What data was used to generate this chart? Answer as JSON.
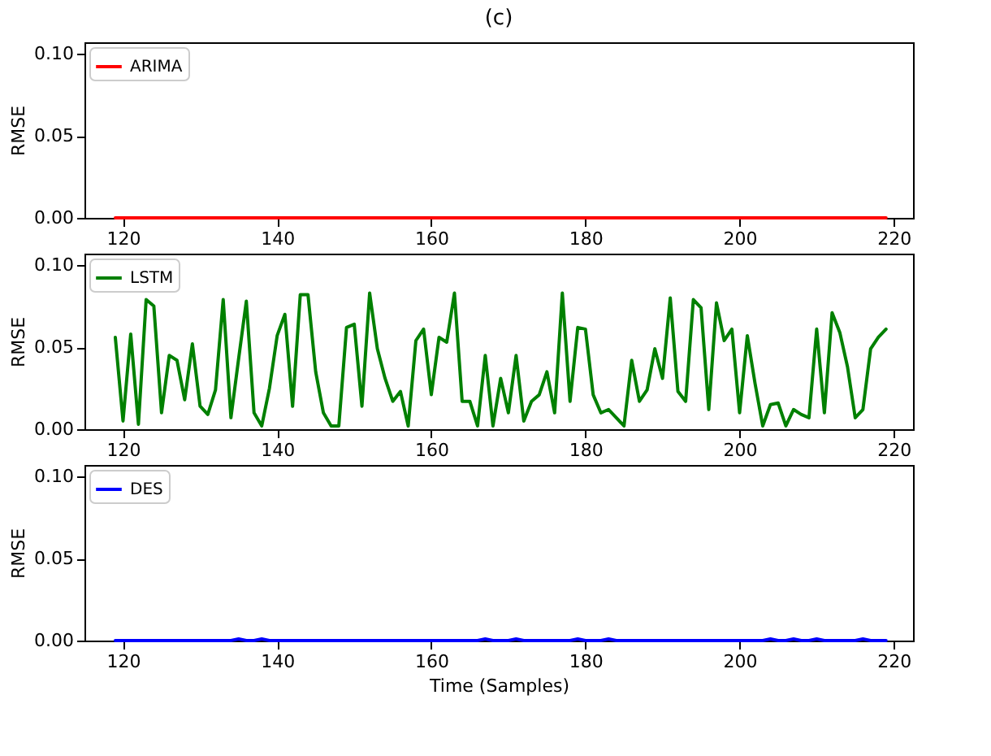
{
  "chart_data": [
    {
      "type": "line",
      "title": "(c)",
      "ylabel": "RMSE",
      "xlim": [
        115,
        222.5
      ],
      "xticks": [
        120,
        140,
        160,
        180,
        200,
        220
      ],
      "ylim": [
        0,
        0.107
      ],
      "yticks": [
        {
          "value": 0,
          "label": "0.00"
        },
        {
          "value": 0.05,
          "label": "0.05"
        },
        {
          "value": 0.1,
          "label": "0.10"
        }
      ],
      "legend": "top left",
      "grid": false,
      "series": [
        {
          "name": "ARIMA",
          "color": "#ff0000",
          "x": [
            119,
            219
          ],
          "values": [
            0,
            0
          ]
        }
      ]
    },
    {
      "type": "line",
      "ylabel": "RMSE",
      "xlim": [
        115,
        222.5
      ],
      "xticks": [
        120,
        140,
        160,
        180,
        200,
        220
      ],
      "ylim": [
        0,
        0.107
      ],
      "yticks": [
        {
          "value": 0,
          "label": "0.00"
        },
        {
          "value": 0.05,
          "label": "0.05"
        },
        {
          "value": 0.1,
          "label": "0.10"
        }
      ],
      "legend": "top left",
      "grid": false,
      "series": [
        {
          "name": "LSTM",
          "color": "#008000",
          "x": [
            119,
            120,
            121,
            122,
            123,
            124,
            125,
            126,
            127,
            128,
            129,
            130,
            131,
            132,
            133,
            134,
            135,
            136,
            137,
            138,
            139,
            140,
            141,
            142,
            143,
            144,
            145,
            146,
            147,
            148,
            149,
            150,
            151,
            152,
            153,
            154,
            155,
            156,
            157,
            158,
            159,
            160,
            161,
            162,
            163,
            164,
            165,
            166,
            167,
            168,
            169,
            170,
            171,
            172,
            173,
            174,
            175,
            176,
            177,
            178,
            179,
            180,
            181,
            182,
            183,
            184,
            185,
            186,
            187,
            188,
            189,
            190,
            191,
            192,
            193,
            194,
            195,
            196,
            197,
            198,
            199,
            200,
            201,
            202,
            203,
            204,
            205,
            206,
            207,
            208,
            209,
            210,
            211,
            212,
            213,
            214,
            215,
            216,
            217,
            218,
            219
          ],
          "values": [
            0.056,
            0.005,
            0.058,
            0.003,
            0.079,
            0.075,
            0.01,
            0.045,
            0.042,
            0.018,
            0.052,
            0.014,
            0.009,
            0.024,
            0.079,
            0.007,
            0.043,
            0.078,
            0.01,
            0.002,
            0.025,
            0.057,
            0.07,
            0.014,
            0.082,
            0.082,
            0.035,
            0.01,
            0.002,
            0.002,
            0.062,
            0.064,
            0.014,
            0.083,
            0.049,
            0.031,
            0.017,
            0.023,
            0.002,
            0.054,
            0.061,
            0.021,
            0.056,
            0.053,
            0.083,
            0.017,
            0.017,
            0.002,
            0.045,
            0.002,
            0.031,
            0.01,
            0.045,
            0.005,
            0.017,
            0.021,
            0.035,
            0.01,
            0.083,
            0.017,
            0.062,
            0.061,
            0.021,
            0.01,
            0.012,
            0.007,
            0.002,
            0.042,
            0.017,
            0.024,
            0.049,
            0.031,
            0.08,
            0.023,
            0.017,
            0.079,
            0.074,
            0.012,
            0.077,
            0.054,
            0.061,
            0.01,
            0.057,
            0.028,
            0.002,
            0.015,
            0.016,
            0.002,
            0.012,
            0.009,
            0.007,
            0.061,
            0.01,
            0.071,
            0.059,
            0.038,
            0.007,
            0.012,
            0.049,
            0.056,
            0.061
          ]
        }
      ]
    },
    {
      "type": "line",
      "ylabel": "RMSE",
      "xlabel": "Time (Samples)",
      "xlim": [
        115,
        222.5
      ],
      "xticks": [
        120,
        140,
        160,
        180,
        200,
        220
      ],
      "ylim": [
        0,
        0.107
      ],
      "yticks": [
        {
          "value": 0,
          "label": "0.00"
        },
        {
          "value": 0.05,
          "label": "0.05"
        },
        {
          "value": 0.1,
          "label": "0.10"
        }
      ],
      "legend": "top left",
      "grid": false,
      "series": [
        {
          "name": "DES",
          "color": "#0000ff",
          "x": [
            119,
            134,
            135,
            136,
            137,
            138,
            139,
            166,
            167,
            168,
            170,
            171,
            172,
            178,
            179,
            180,
            182,
            183,
            184,
            203,
            204,
            205,
            206,
            207,
            208,
            209,
            210,
            211,
            215,
            216,
            217,
            219
          ],
          "values": [
            0,
            0,
            0.001,
            0,
            0,
            0.001,
            0,
            0,
            0.001,
            0,
            0,
            0.001,
            0,
            0,
            0.001,
            0,
            0,
            0.001,
            0,
            0,
            0.001,
            0,
            0,
            0.001,
            0,
            0,
            0.001,
            0,
            0,
            0.001,
            0,
            0
          ]
        }
      ]
    }
  ]
}
